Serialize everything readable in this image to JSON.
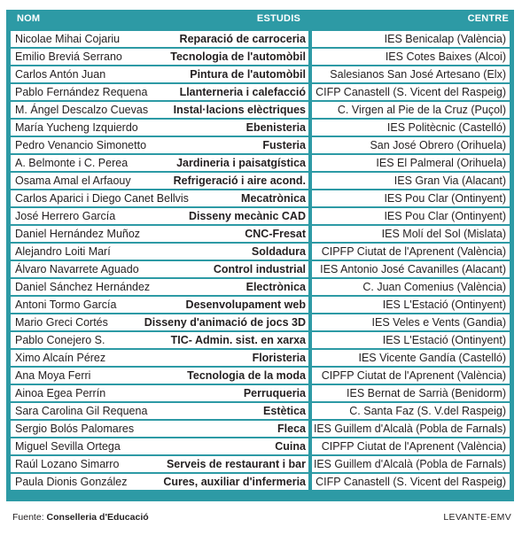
{
  "header": {
    "nom": "NOM",
    "estudis": "ESTUDIS",
    "centre": "CENTRE"
  },
  "rows": [
    {
      "nom": "Nicolae Mihai Cojariu",
      "estudis": "Reparació de carroceria",
      "centre": "IES Benicalap (València)"
    },
    {
      "nom": "Emilio Breviá Serrano",
      "estudis": "Tecnologia de l'automòbil",
      "centre": "IES Cotes Baixes (Alcoi)"
    },
    {
      "nom": "Carlos Antón Juan",
      "estudis": "Pintura de l'automòbil",
      "centre": "Salesianos San José Artesano (Elx)"
    },
    {
      "nom": "Pablo Fernández Requena",
      "estudis": "Llanterneria i calefacció",
      "centre": "CIFP Canastell (S. Vicent del Raspeig)"
    },
    {
      "nom": "M. Ángel Descalzo Cuevas",
      "estudis": "Instal·lacions elèctriques",
      "centre": "C. Virgen al Pie de la Cruz (Puçol)"
    },
    {
      "nom": "María Yucheng Izquierdo",
      "estudis": "Ebenisteria",
      "centre": "IES Politècnic (Castelló)"
    },
    {
      "nom": "Pedro Venancio Simonetto",
      "estudis": "Fusteria",
      "centre": "San José Obrero (Orihuela)"
    },
    {
      "nom": "A. Belmonte i C. Perea",
      "estudis": "Jardineria i paisatgística",
      "centre": "IES El Palmeral (Orihuela)"
    },
    {
      "nom": "Osama Amal el Arfaouy",
      "estudis": "Refrigeració i aire acond.",
      "centre": "IES Gran Via (Alacant)"
    },
    {
      "nom": "Carlos Aparici i Diego Canet Bellvis",
      "estudis": "Mecatrònica",
      "centre": "IES Pou Clar (Ontinyent)"
    },
    {
      "nom": "José Herrero García",
      "estudis": "Disseny mecànic CAD",
      "centre": "IES Pou Clar (Ontinyent)"
    },
    {
      "nom": "Daniel Hernández Muñoz",
      "estudis": "CNC-Fresat",
      "centre": "IES Molí del Sol (Mislata)"
    },
    {
      "nom": "Alejandro Loiti Marí",
      "estudis": "Soldadura",
      "centre": "CIPFP Ciutat de l'Aprenent (València)"
    },
    {
      "nom": "Álvaro Navarrete Aguado",
      "estudis": "Control industrial",
      "centre": "IES Antonio José Cavanilles (Alacant)"
    },
    {
      "nom": "Daniel Sánchez Hernández",
      "estudis": "Electrònica",
      "centre": "C. Juan Comenius (València)"
    },
    {
      "nom": "Antoni Tormo García",
      "estudis": "Desenvolupament web",
      "centre": "IES L'Estació (Ontinyent)"
    },
    {
      "nom": "Mario Greci Cortés",
      "estudis": "Disseny d'animació de jocs 3D",
      "centre": "IES Veles e Vents (Gandia)"
    },
    {
      "nom": "Pablo Conejero S.",
      "estudis": "TIC- Admin. sist. en xarxa",
      "centre": "IES L'Estació (Ontinyent)"
    },
    {
      "nom": "Ximo Alcaín Pérez",
      "estudis": "Floristeria",
      "centre": "IES Vicente Gandía (Castelló)"
    },
    {
      "nom": "Ana Moya Ferri",
      "estudis": "Tecnologia de la moda",
      "centre": "CIPFP Ciutat de l'Aprenent (València)"
    },
    {
      "nom": "Ainoa Egea Perrín",
      "estudis": "Perruqueria",
      "centre": "IES Bernat de Sarrià (Benidorm)"
    },
    {
      "nom": "Sara Carolina Gil Requena",
      "estudis": "Estètica",
      "centre": "C. Santa Faz (S. V.del Raspeig)"
    },
    {
      "nom": "Sergio Bolós Palomares",
      "estudis": "Fleca",
      "centre": "IES Guillem d'Alcalà (Pobla de Farnals)"
    },
    {
      "nom": "Miguel Sevilla Ortega",
      "estudis": "Cuina",
      "centre": "CIPFP Ciutat de l'Aprenent (València)"
    },
    {
      "nom": "Raúl Lozano Simarro",
      "estudis": "Serveis de restaurant i bar",
      "centre": "IES Guillem d'Alcalà (Pobla de Farnals)"
    },
    {
      "nom": "Paula Dionis González",
      "estudis": "Cures, auxiliar d'infermeria",
      "centre": "CIFP Canastell (S. Vicent del Raspeig)"
    }
  ],
  "footer": {
    "source_label": "Fuente:",
    "source": "Conselleria d'Educació",
    "brand": "LEVANTE-EMV"
  },
  "colors": {
    "accent": "#2d9aa5",
    "text": "#231f20"
  }
}
